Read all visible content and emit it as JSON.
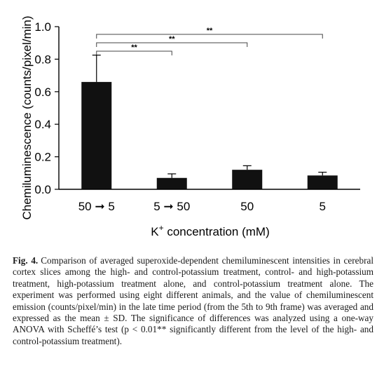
{
  "chart_data": {
    "type": "bar",
    "categories": [
      "50 ➞ 5",
      "5 ➞ 50",
      "50",
      "5"
    ],
    "values": [
      0.66,
      0.07,
      0.12,
      0.085
    ],
    "errors": [
      0.165,
      0.025,
      0.025,
      0.02
    ],
    "ylabel": "Chemiluminescence (counts/pixel/min)",
    "xlabel_main": "K",
    "xlabel_sup": "+",
    "xlabel_rest": " concentration (mM)",
    "ylim": [
      0,
      1.0
    ],
    "yticks": [
      0.0,
      0.2,
      0.4,
      0.6,
      0.8,
      1.0
    ],
    "ytick_labels": [
      "0.0",
      "0.2",
      "0.4",
      "0.6",
      "0.8",
      "1.0"
    ],
    "significance": [
      {
        "from": 0,
        "to": 1,
        "label": "**"
      },
      {
        "from": 0,
        "to": 2,
        "label": "**"
      },
      {
        "from": 0,
        "to": 3,
        "label": "**"
      }
    ],
    "bar_color": "#111111"
  },
  "caption": {
    "label": "Fig. 4.",
    "text": "Comparison of averaged superoxide-dependent chemiluminescent intensities in cerebral cortex slices among the high- and control-potassium treatment, control- and high-potassium treatment, high-potassium treatment alone, and control-potassium treatment alone. The experiment was performed using eight different animals, and the value of chemiluminescent emission (counts/pixel/min) in the late time period (from the 5th to 9th frame) was averaged and expressed as the mean ± SD. The significance of differences was analyzed using a one-way ANOVA with Scheffé’s test (p < 0.01** significantly different from the level of the high- and control-potassium treatment)."
  }
}
